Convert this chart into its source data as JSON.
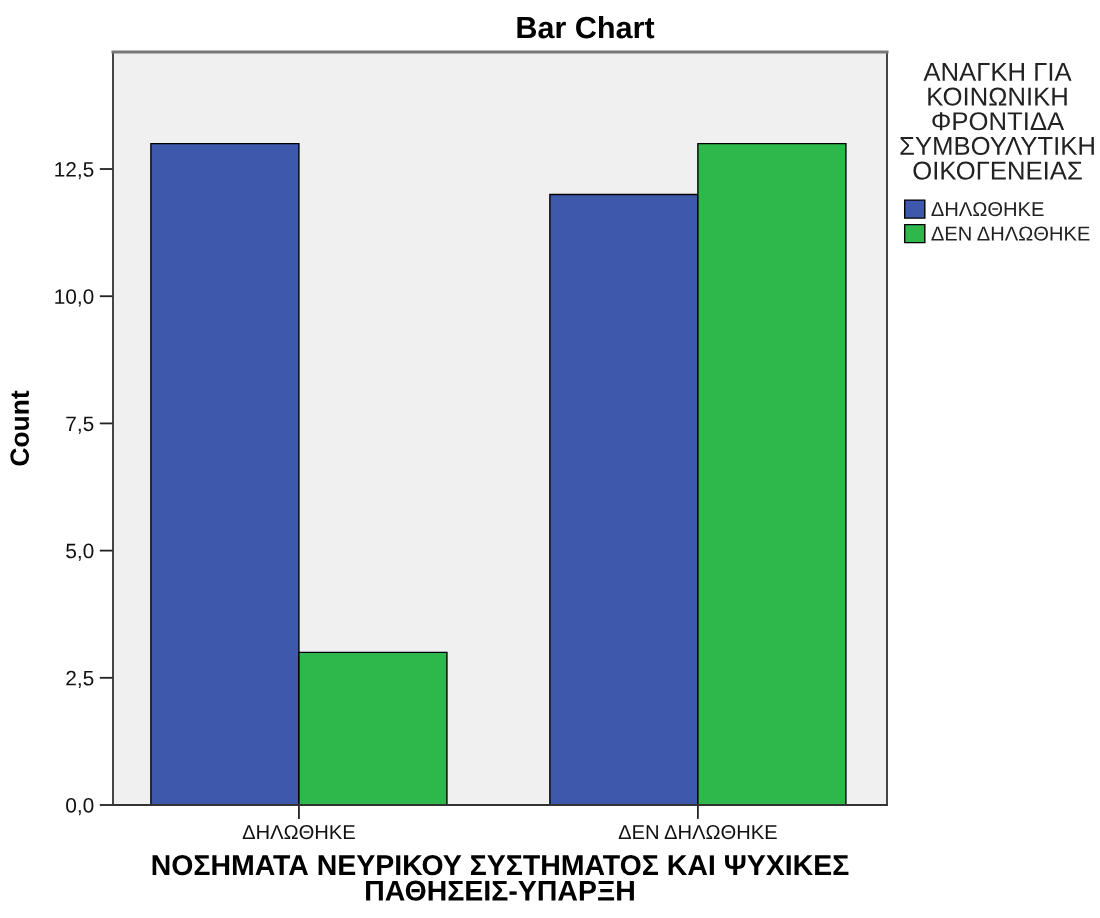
{
  "chart_data": {
    "type": "bar",
    "title": "Bar Chart",
    "xlabel": "ΝΟΣΗΜΑΤΑ ΝΕΥΡΙΚΟΥ ΣΥΣΤΗΜΑΤΟΣ ΚΑΙ ΨΥΧΙΚΕΣ\nΠΑΘΗΣΕΙΣ-ΥΠΑΡΞΗ",
    "ylabel": "Count",
    "legend_title": "ΑΝΑΓΚΗ ΓΙΑ\nΚΟΙΝΩΝΙΚΗ\nΦΡΟΝΤΙΔΑ\nΣΥΜΒΟΥΛΥΤΙΚΗ\nΟΙΚΟΓΕΝΕΙΑΣ",
    "categories": [
      "ΔΗΛΩΘΗΚΕ",
      "ΔΕΝ ΔΗΛΩΘΗΚΕ"
    ],
    "series": [
      {
        "name": "ΔΗΛΩΘΗΚΕ",
        "color": "#3e58ac",
        "values": [
          13,
          12
        ]
      },
      {
        "name": "ΔΕΝ ΔΗΛΩΘΗΚΕ",
        "color": "#2eb84b",
        "values": [
          3,
          13
        ]
      }
    ],
    "ylim": [
      0,
      14.8
    ],
    "yticks": [
      {
        "value": 0,
        "label": "0,0"
      },
      {
        "value": 2.5,
        "label": "2,5"
      },
      {
        "value": 5,
        "label": "5,0"
      },
      {
        "value": 7.5,
        "label": "7,5"
      },
      {
        "value": 10,
        "label": "10,0"
      },
      {
        "value": 12.5,
        "label": "12,5"
      }
    ],
    "legend": "top right"
  }
}
